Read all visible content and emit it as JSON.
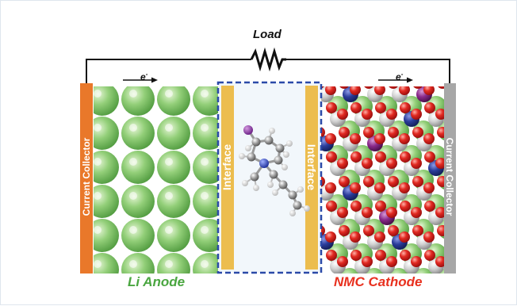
{
  "labels": {
    "load": "Load",
    "electron_symbol": "e",
    "electron_charge": "-",
    "current_collector_left": "Current Collector",
    "current_collector_right": "Current Collector",
    "interface_left": "Interface",
    "interface_right": "Interface",
    "anode": "Li Anode",
    "cathode": "NMC Cathode"
  },
  "colors": {
    "anode_label": "#4aa640",
    "cathode_label": "#e8301e",
    "collector_left": "#e9782a",
    "collector_right": "#a7a7a7",
    "interface_bar": "#ecbd4e",
    "electrolyte_box_border": "#2b4aa8",
    "li_atom": "#7ec36a",
    "oxygen_atom": "#d91e1e",
    "nickel_atom": "#c8c8c8",
    "manganese_atom": "#2a3c96",
    "cobalt_atom": "#8a2a8a"
  },
  "icons": [
    "resistor-icon",
    "electron-arrow-icon",
    "molecule-icon"
  ]
}
